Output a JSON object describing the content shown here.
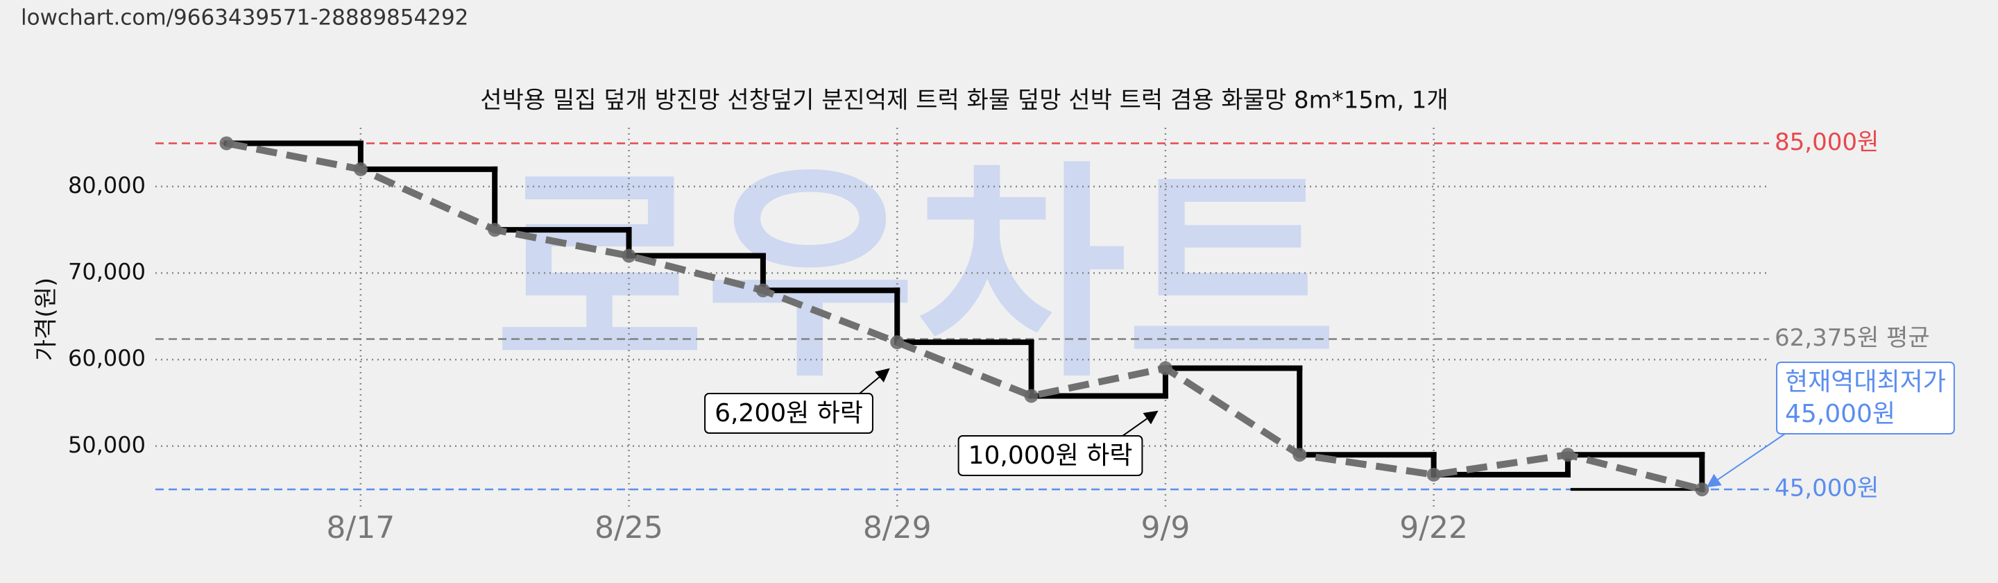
{
  "header": {
    "url": "lowchart.com/9663439571-28889854292"
  },
  "chart_data": {
    "type": "line",
    "title": "선박용 밀집 덮개 방진망 선창덮기 분진억제 트럭 화물 덮망 선박 트럭 겸용 화물망 8m*15m, 1개",
    "y_label": "가격(원)",
    "watermark": "로우차트",
    "categories": [
      null,
      "8/17",
      null,
      "8/25",
      null,
      "8/29",
      null,
      "9/9",
      null,
      "9/22",
      null,
      null
    ],
    "values": [
      85000,
      82000,
      75000,
      72000,
      68000,
      62000,
      55800,
      59000,
      49000,
      46700,
      49000,
      45000
    ],
    "step_color": "#000000",
    "trend_color": "#707070",
    "ylim": [
      42600,
      86800
    ],
    "yticks": [
      {
        "value": 50000,
        "label": "50,000"
      },
      {
        "value": 60000,
        "label": "60,000"
      },
      {
        "value": 70000,
        "label": "70,000"
      },
      {
        "value": 80000,
        "label": "80,000"
      }
    ],
    "grid": true,
    "reference_lines": [
      {
        "value": 85000,
        "label": "85,000원",
        "color": "#e8474c"
      },
      {
        "value": 62375,
        "label": "62,375원 평균",
        "color": "#808080"
      },
      {
        "value": 45000,
        "label": "45,000원",
        "color": "#5b8def"
      }
    ],
    "annotations": [
      {
        "index": 6,
        "text": "6,200원 하락"
      },
      {
        "index": 8,
        "text": "10,000원 하락"
      }
    ],
    "lowest_note": {
      "index": 11,
      "lines": [
        "현재역대최저가",
        "45,000원"
      ],
      "color": "#5b8def"
    }
  }
}
